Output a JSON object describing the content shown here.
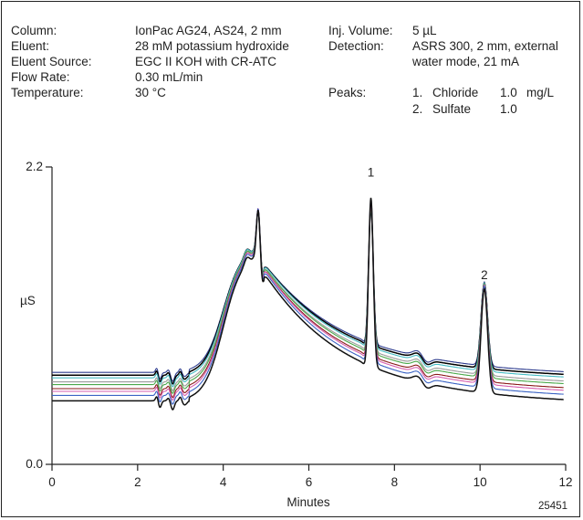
{
  "chart_data": {
    "type": "line",
    "conditions": [
      {
        "label": "Column:",
        "value": "IonPac AG24, AS24, 2 mm"
      },
      {
        "label": "Eluent:",
        "value": "28 mM potassium hydroxide"
      },
      {
        "label": "Eluent Source:",
        "value": "EGC II KOH with CR-ATC"
      },
      {
        "label": "Flow Rate:",
        "value": "0.30 mL/min"
      },
      {
        "label": "Temperature:",
        "value": "30 °C"
      }
    ],
    "conditions_right": [
      {
        "label": "Inj. Volume:",
        "value": "5 µL"
      },
      {
        "label": "Detection:",
        "value": "ASRS 300, 2 mm, external"
      },
      {
        "label": "",
        "value": "water mode, 21 mA"
      }
    ],
    "peaks_label": "Peaks:",
    "peaks": [
      {
        "number": "1.",
        "name": "Chloride",
        "conc": "1.0",
        "unit": "mg/L"
      },
      {
        "number": "2.",
        "name": "Sulfate",
        "conc": "1.0",
        "unit": ""
      }
    ],
    "xlabel": "Minutes",
    "ylabel": "µS",
    "xlim": [
      0,
      12
    ],
    "ylim": [
      0.0,
      2.2
    ],
    "x_ticks": [
      "0",
      "2",
      "4",
      "6",
      "8",
      "10",
      "12"
    ],
    "y_ticks": [
      "0.0",
      "2.2"
    ],
    "peak_labels": [
      {
        "text": "1",
        "x": 7.45,
        "y": 2.13
      },
      {
        "text": "2",
        "x": 10.1,
        "y": 1.37
      }
    ],
    "figure_id": "25451",
    "series_colors": [
      "#2f3d8f",
      "#000000",
      "#47bcc4",
      "#9a9a9a",
      "#4aa84a",
      "#8b1a1a",
      "#d65fb0",
      "#3a63c4",
      "#111111"
    ],
    "series": [
      {
        "baseline": 0.68,
        "hump": 0.93,
        "p48": 0.35,
        "p1": 1.0,
        "p2": 0.62
      },
      {
        "baseline": 0.66,
        "hump": 0.95,
        "p48": 0.36,
        "p1": 1.02,
        "p2": 0.63
      },
      {
        "baseline": 0.64,
        "hump": 0.97,
        "p48": 0.37,
        "p1": 1.05,
        "p2": 0.65
      },
      {
        "baseline": 0.61,
        "hump": 0.99,
        "p48": 0.38,
        "p1": 1.08,
        "p2": 0.67
      },
      {
        "baseline": 0.59,
        "hump": 1.01,
        "p48": 0.39,
        "p1": 1.11,
        "p2": 0.69
      },
      {
        "baseline": 0.56,
        "hump": 1.03,
        "p48": 0.4,
        "p1": 1.14,
        "p2": 0.71
      },
      {
        "baseline": 0.54,
        "hump": 1.05,
        "p48": 0.41,
        "p1": 1.17,
        "p2": 0.73
      },
      {
        "baseline": 0.51,
        "hump": 1.07,
        "p48": 0.42,
        "p1": 1.21,
        "p2": 0.75
      },
      {
        "baseline": 0.47,
        "hump": 1.09,
        "p48": 0.43,
        "p1": 1.25,
        "p2": 0.77
      }
    ]
  }
}
